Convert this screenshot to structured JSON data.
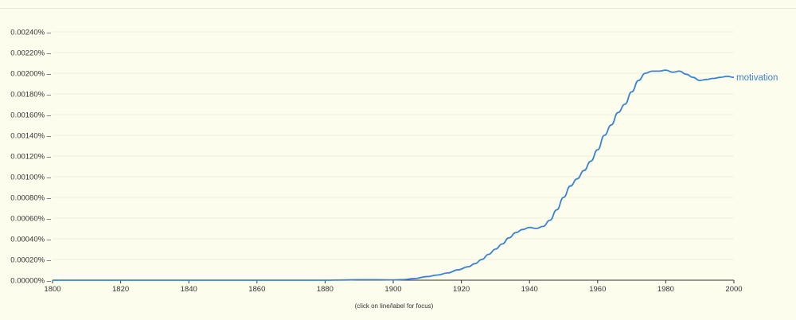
{
  "chart_data": {
    "type": "line",
    "title": "",
    "xlabel": "",
    "ylabel": "",
    "xlim": [
      1800,
      2000
    ],
    "ylim": [
      0,
      0.0024
    ],
    "x_ticks": [
      "1800",
      "1820",
      "1840",
      "1860",
      "1880",
      "1900",
      "1920",
      "1940",
      "1960",
      "1980",
      "2000"
    ],
    "y_ticks": [
      "0.00000%",
      "0.00020%",
      "0.00040%",
      "0.00060%",
      "0.00080%",
      "0.00100%",
      "0.00120%",
      "0.00140%",
      "0.00160%",
      "0.00180%",
      "0.00200%",
      "0.00220%",
      "0.00240%"
    ],
    "grid": true,
    "footnote": "(click on line/label for focus)",
    "series": [
      {
        "name": "motivation",
        "color": "#3b82d4",
        "unit": "percent",
        "points": [
          [
            1800,
            0.0
          ],
          [
            1880,
            0.0
          ],
          [
            1885,
            2e-06
          ],
          [
            1890,
            5e-06
          ],
          [
            1895,
            5e-06
          ],
          [
            1900,
            3e-06
          ],
          [
            1903,
            6e-06
          ],
          [
            1906,
            1.5e-05
          ],
          [
            1910,
            3.5e-05
          ],
          [
            1913,
            5e-05
          ],
          [
            1916,
            7e-05
          ],
          [
            1919,
            0.0001
          ],
          [
            1922,
            0.00013
          ],
          [
            1924,
            0.00016
          ],
          [
            1926,
            0.0002
          ],
          [
            1928,
            0.00025
          ],
          [
            1930,
            0.0003
          ],
          [
            1932,
            0.00035
          ],
          [
            1934,
            0.00041
          ],
          [
            1936,
            0.00046
          ],
          [
            1938,
            0.00049
          ],
          [
            1940,
            0.00051
          ],
          [
            1942,
            0.0005
          ],
          [
            1944,
            0.00052
          ],
          [
            1946,
            0.00058
          ],
          [
            1948,
            0.00068
          ],
          [
            1950,
            0.0008
          ],
          [
            1952,
            0.00091
          ],
          [
            1954,
            0.00098
          ],
          [
            1956,
            0.00106
          ],
          [
            1958,
            0.00115
          ],
          [
            1960,
            0.00126
          ],
          [
            1962,
            0.0014
          ],
          [
            1964,
            0.0015
          ],
          [
            1966,
            0.00162
          ],
          [
            1968,
            0.0017
          ],
          [
            1970,
            0.00182
          ],
          [
            1972,
            0.00193
          ],
          [
            1974,
            0.002
          ],
          [
            1976,
            0.00202
          ],
          [
            1978,
            0.00202
          ],
          [
            1980,
            0.00203
          ],
          [
            1982,
            0.00201
          ],
          [
            1984,
            0.00202
          ],
          [
            1986,
            0.00199
          ],
          [
            1988,
            0.00196
          ],
          [
            1990,
            0.00193
          ],
          [
            1992,
            0.00194
          ],
          [
            1994,
            0.00195
          ],
          [
            1996,
            0.00196
          ],
          [
            1998,
            0.00197
          ],
          [
            2000,
            0.00196
          ]
        ]
      }
    ]
  }
}
